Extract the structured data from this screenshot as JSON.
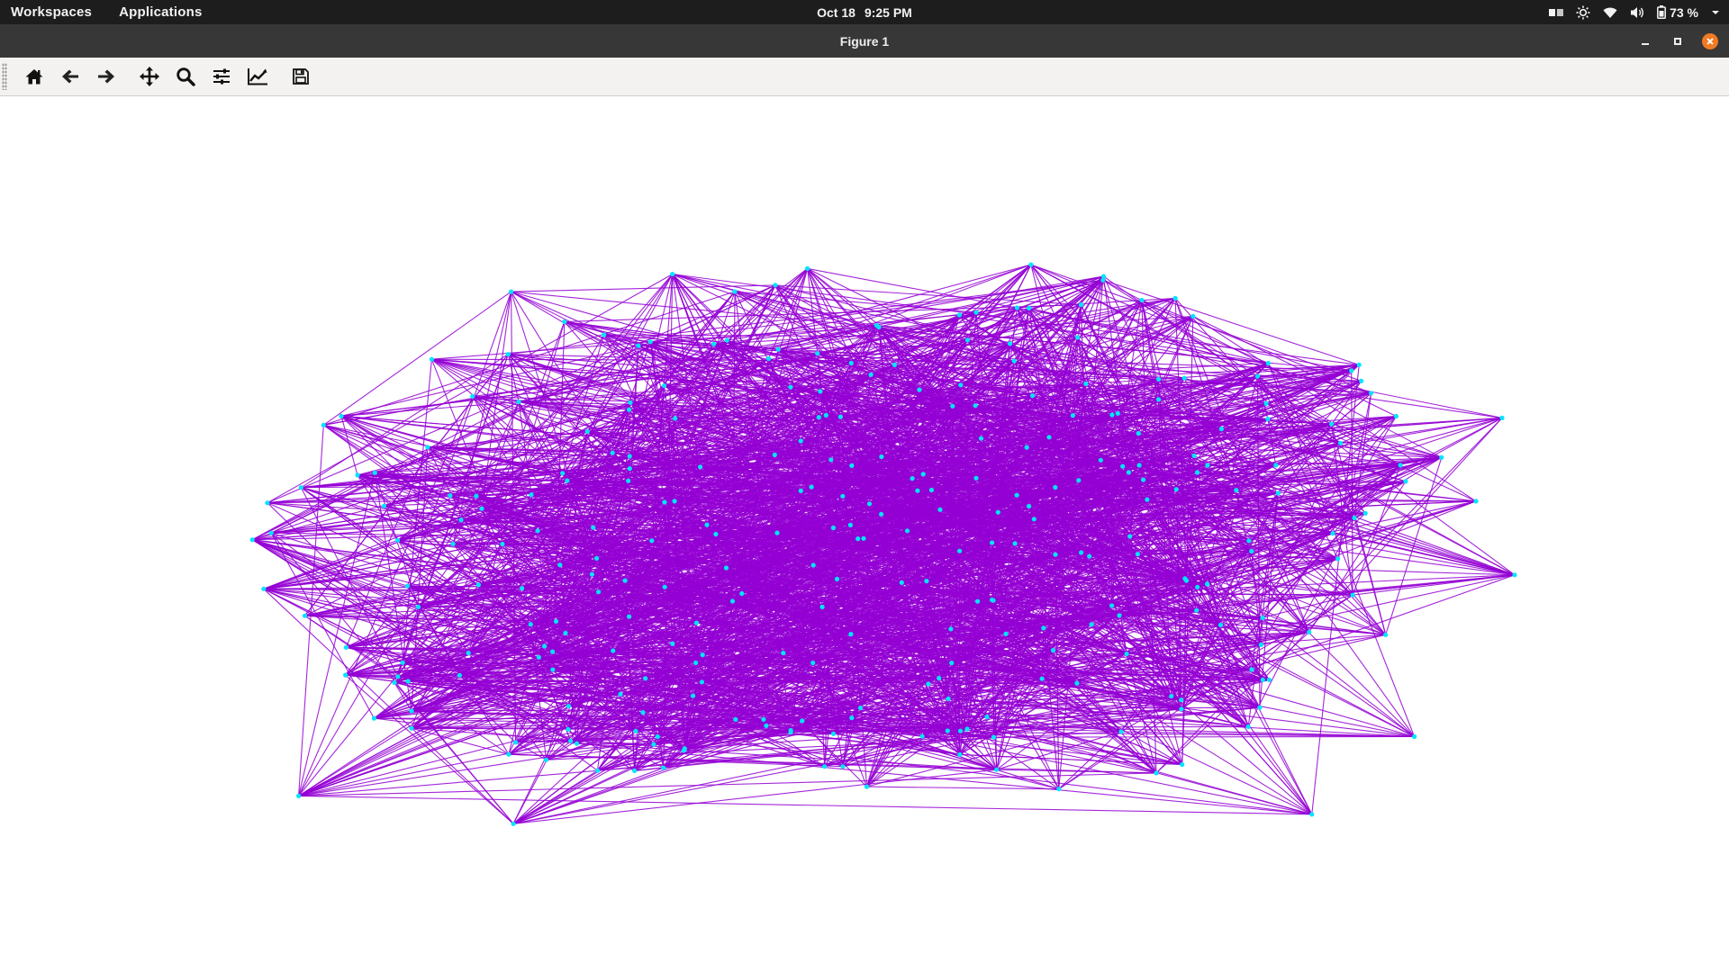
{
  "system_bar": {
    "workspaces_label": "Workspaces",
    "applications_label": "Applications",
    "date": "Oct 18",
    "time": "9:25 PM",
    "battery_percent": "73 %",
    "tray_icons": [
      "workspace-switcher-icon",
      "brightness-icon",
      "wifi-icon",
      "volume-icon",
      "battery-icon",
      "chevron-down-icon"
    ]
  },
  "window": {
    "title": "Figure 1",
    "buttons": [
      "minimize-icon",
      "maximize-icon",
      "close-icon"
    ]
  },
  "toolbar": {
    "tools": [
      "home-icon",
      "back-icon",
      "forward-icon",
      "pan-icon",
      "zoom-icon",
      "configure-subplots-icon",
      "edit-axis-icon",
      "save-icon"
    ]
  },
  "colors": {
    "edge": "#9400D3",
    "node": "#00E5FF",
    "topbar": "#1d1d1d",
    "titlebar": "#373737",
    "close_button": "#f07a24"
  },
  "chart_data": {
    "type": "network_graph",
    "title": "",
    "xlabel": "",
    "ylabel": "",
    "axes_visible": false,
    "grid": false,
    "legend": "none",
    "approx_node_count": 300,
    "approx_edge_count": 2600
  }
}
